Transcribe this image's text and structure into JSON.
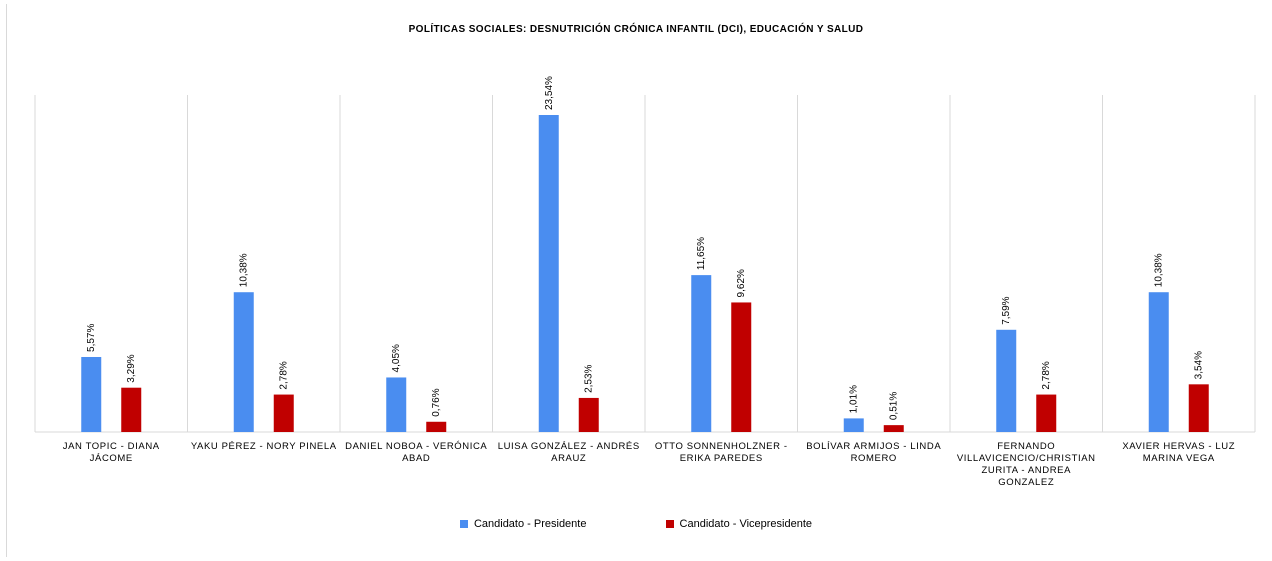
{
  "chart_data": {
    "type": "bar",
    "title": "POLÍTICAS SOCIALES: DESNUTRICIÓN CRÓNICA INFANTIL (DCI), EDUCACIÓN Y SALUD",
    "xlabel": "",
    "ylabel": "",
    "ylim": [
      0,
      25
    ],
    "grid": "vertical separators between categories",
    "legend_position": "bottom",
    "categories": [
      "JAN TOPIC -         DIANA\nJÁCOME",
      "YAKU PÉREZ - NORY PINELA",
      "DANIEL NOBOA - VERÓNICA\nABAD",
      "LUISA GONZÁLEZ - ANDRÉS\nARAUZ",
      "OTTO SONNENHOLZNER -\nERIKA PAREDES",
      "BOLÍVAR ARMIJOS - LINDA\nROMERO",
      "FERNANDO\nVILLAVICENCIO/CHRISTIAN\nZURITA - ANDREA GONZALEZ",
      "XAVIER HERVAS -  LUZ\nMARINA VEGA"
    ],
    "series": [
      {
        "name": "Candidato - Presidente",
        "color": "#4a8df0",
        "values": [
          5.57,
          10.38,
          4.05,
          23.54,
          11.65,
          1.01,
          7.59,
          10.38
        ],
        "labels": [
          "5,57%",
          "10,38%",
          "4,05%",
          "23,54%",
          "11,65%",
          "1,01%",
          "7,59%",
          "10,38%"
        ]
      },
      {
        "name": "Candidato - Vicepresidente",
        "color": "#c00000",
        "values": [
          3.29,
          2.78,
          0.76,
          2.53,
          9.62,
          0.51,
          2.78,
          3.54
        ],
        "labels": [
          "3,29%",
          "2,78%",
          "0,76%",
          "2,53%",
          "9,62%",
          "0,51%",
          "2,78%",
          "3,54%"
        ]
      }
    ]
  }
}
